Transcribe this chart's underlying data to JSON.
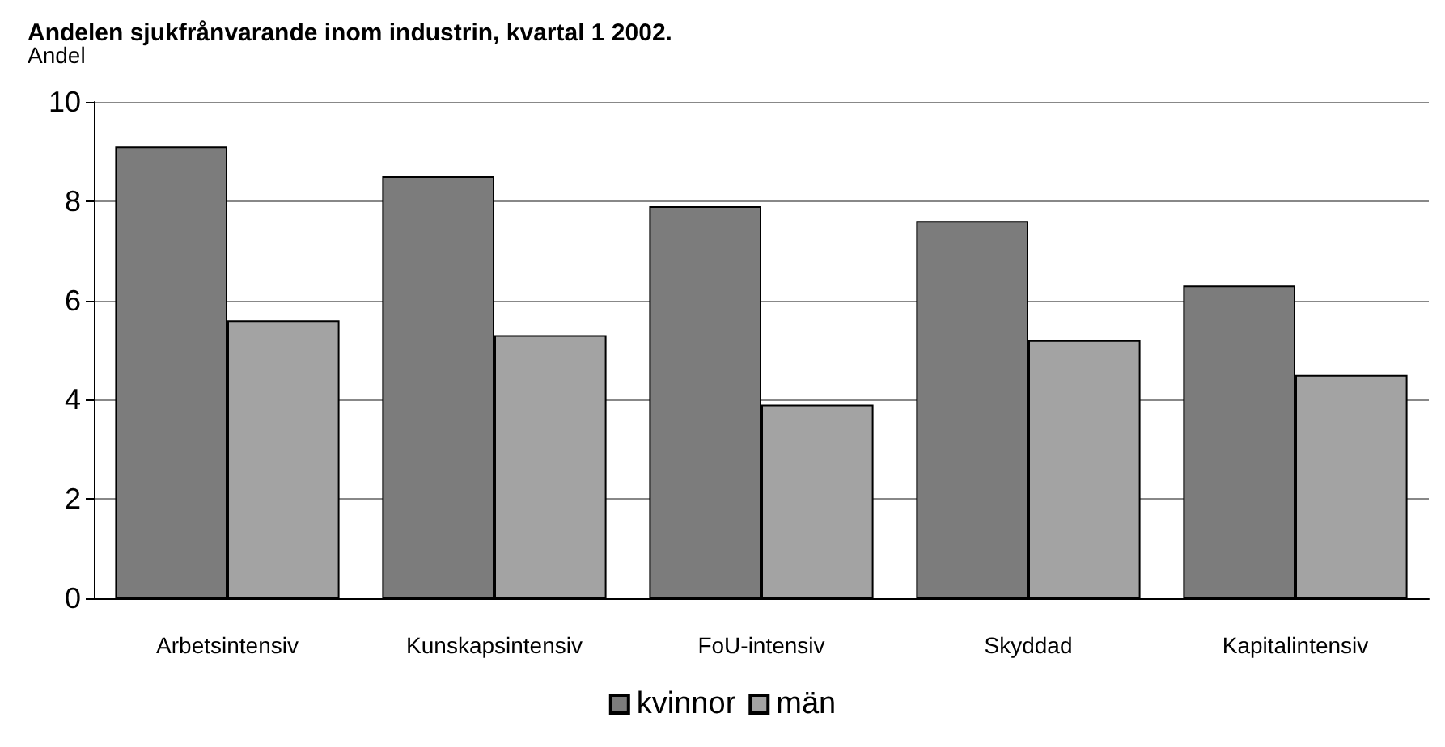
{
  "chart_data": {
    "type": "bar",
    "title": "Andelen sjukfrånvarande inom industrin, kvartal 1 2002.",
    "ylabel": "Andel",
    "categories": [
      "Arbetsintensiv",
      "Kunskapsintensiv",
      "FoU-intensiv",
      "Skyddad",
      "Kapitalintensiv"
    ],
    "series": [
      {
        "name": "kvinnor",
        "color": "#7c7c7c",
        "values": [
          9.1,
          8.5,
          7.9,
          7.6,
          6.3
        ]
      },
      {
        "name": "män",
        "color": "#a3a3a3",
        "values": [
          5.6,
          5.3,
          3.9,
          5.2,
          4.5
        ]
      }
    ],
    "ylim": [
      0,
      10
    ],
    "yticks": [
      0,
      2,
      4,
      6,
      8,
      10
    ],
    "grid": "y",
    "legend": "bottom"
  }
}
